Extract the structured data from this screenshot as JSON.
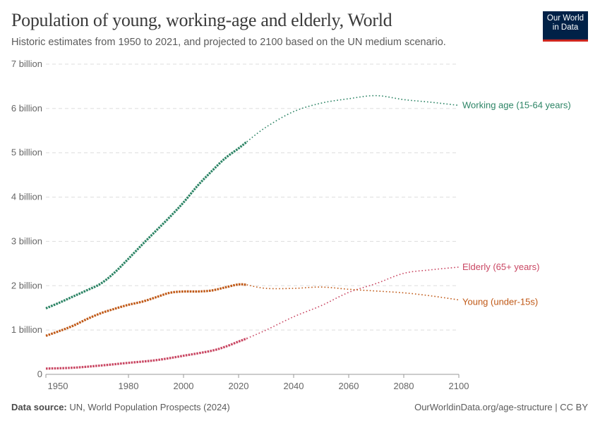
{
  "header": {
    "title": "Population of young, working-age and elderly, World",
    "subtitle": "Historic estimates from 1950 to 2021, and projected to 2100 based on the UN medium scenario.",
    "logo_line1": "Our World",
    "logo_line2": "in Data"
  },
  "footer": {
    "source_label": "Data source:",
    "source": "UN, World Population Prospects (2024)",
    "credit": "OurWorldinData.org/age-structure | CC BY"
  },
  "chart_data": {
    "type": "line",
    "xlim": [
      1950,
      2100
    ],
    "ylim": [
      0,
      7
    ],
    "x_ticks": [
      1950,
      1980,
      2000,
      2020,
      2040,
      2060,
      2080,
      2100
    ],
    "y_ticks": [
      {
        "v": 0,
        "label": "0"
      },
      {
        "v": 1,
        "label": "1 billion"
      },
      {
        "v": 2,
        "label": "2 billion"
      },
      {
        "v": 3,
        "label": "3 billion"
      },
      {
        "v": 4,
        "label": "4 billion"
      },
      {
        "v": 5,
        "label": "5 billion"
      },
      {
        "v": 6,
        "label": "6 billion"
      },
      {
        "v": 7,
        "label": "7 billion"
      }
    ],
    "grid": "horizontal dashed",
    "unit": "billion",
    "series": [
      {
        "name": "Working age (15-64 years)",
        "color": "#2c8465",
        "historic": [
          [
            1950,
            1.49
          ],
          [
            1955,
            1.62
          ],
          [
            1960,
            1.76
          ],
          [
            1965,
            1.9
          ],
          [
            1970,
            2.05
          ],
          [
            1975,
            2.3
          ],
          [
            1980,
            2.61
          ],
          [
            1985,
            2.93
          ],
          [
            1990,
            3.24
          ],
          [
            1995,
            3.55
          ],
          [
            2000,
            3.88
          ],
          [
            2005,
            4.25
          ],
          [
            2010,
            4.57
          ],
          [
            2015,
            4.87
          ],
          [
            2020,
            5.1
          ],
          [
            2023,
            5.25
          ]
        ],
        "projected": [
          [
            2023,
            5.25
          ],
          [
            2030,
            5.58
          ],
          [
            2040,
            5.93
          ],
          [
            2050,
            6.12
          ],
          [
            2060,
            6.22
          ],
          [
            2070,
            6.29
          ],
          [
            2080,
            6.2
          ],
          [
            2090,
            6.14
          ],
          [
            2100,
            6.07
          ]
        ]
      },
      {
        "name": "Elderly (65+ years)",
        "color": "#c94763",
        "historic": [
          [
            1950,
            0.13
          ],
          [
            1960,
            0.15
          ],
          [
            1970,
            0.2
          ],
          [
            1980,
            0.26
          ],
          [
            1990,
            0.32
          ],
          [
            2000,
            0.42
          ],
          [
            2010,
            0.53
          ],
          [
            2015,
            0.62
          ],
          [
            2020,
            0.74
          ],
          [
            2023,
            0.81
          ]
        ],
        "projected": [
          [
            2023,
            0.81
          ],
          [
            2030,
            1.0
          ],
          [
            2040,
            1.3
          ],
          [
            2050,
            1.55
          ],
          [
            2060,
            1.85
          ],
          [
            2070,
            2.05
          ],
          [
            2080,
            2.28
          ],
          [
            2090,
            2.36
          ],
          [
            2100,
            2.42
          ]
        ]
      },
      {
        "name": "Young (under-15s)",
        "color": "#c05917",
        "historic": [
          [
            1950,
            0.87
          ],
          [
            1955,
            0.98
          ],
          [
            1960,
            1.1
          ],
          [
            1965,
            1.25
          ],
          [
            1970,
            1.38
          ],
          [
            1975,
            1.48
          ],
          [
            1980,
            1.57
          ],
          [
            1985,
            1.64
          ],
          [
            1990,
            1.74
          ],
          [
            1995,
            1.84
          ],
          [
            2000,
            1.87
          ],
          [
            2005,
            1.87
          ],
          [
            2010,
            1.89
          ],
          [
            2015,
            1.96
          ],
          [
            2020,
            2.03
          ],
          [
            2023,
            2.02
          ]
        ],
        "projected": [
          [
            2023,
            2.02
          ],
          [
            2030,
            1.94
          ],
          [
            2040,
            1.94
          ],
          [
            2050,
            1.97
          ],
          [
            2060,
            1.92
          ],
          [
            2070,
            1.88
          ],
          [
            2080,
            1.84
          ],
          [
            2090,
            1.77
          ],
          [
            2100,
            1.68
          ]
        ]
      }
    ]
  }
}
